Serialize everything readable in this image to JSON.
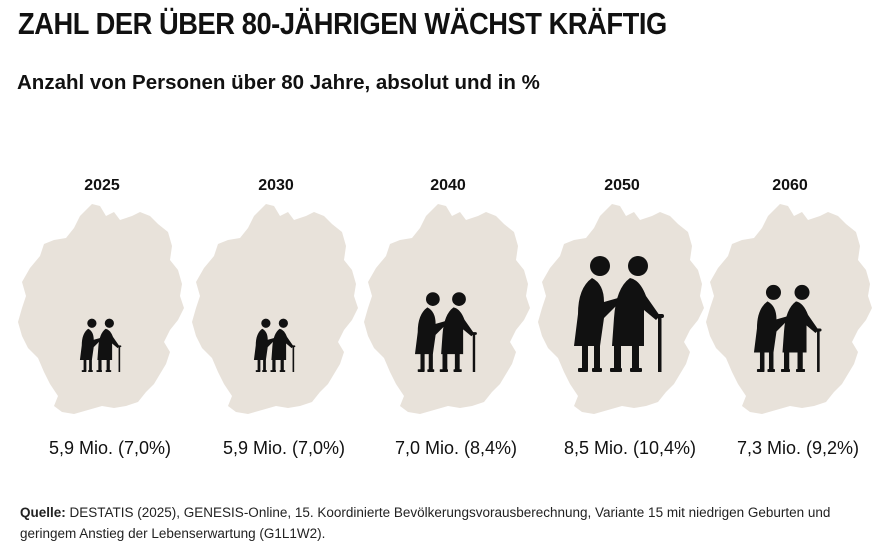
{
  "header": {
    "title": "ZAHL DER ÜBER 80-JÄHRIGEN WÄCHST KRÄFTIG",
    "subtitle": "Anzahl von Personen über 80 Jahre, absolut und in %"
  },
  "chart_data": {
    "type": "pictogram",
    "title": "ZAHL DER ÜBER 80-JÄHRIGEN WÄCHST KRÄFTIG",
    "subtitle": "Anzahl von Personen über 80 Jahre, absolut und in %",
    "categories": [
      "2025",
      "2030",
      "2040",
      "2050",
      "2060"
    ],
    "series": [
      {
        "values_mio": [
          5.9,
          5.9,
          7.0,
          8.5,
          7.3
        ],
        "percent": [
          7.0,
          7.0,
          8.4,
          10.4,
          9.2
        ]
      }
    ],
    "labels": [
      "5,9 Mio. (7,0%)",
      "5,9 Mio. (7,0%)",
      "7,0 Mio. (8,4%)",
      "8,5 Mio. (10,4%)",
      "7,3 Mio. (9,2%)"
    ],
    "icon": "elderly-couple-icon",
    "background_shape": "germany-map-icon",
    "colors": {
      "map": "#e8e2da",
      "icon": "#111111",
      "text": "#111111"
    }
  },
  "source": {
    "label": "Quelle:",
    "text": " DESTATIS (2025), GENESIS-Online, 15. Koordinierte Bevölkerungsvorausberechnung, Variante 15 mit niedrigen Geburten und geringem Anstieg der Lebenserwartung (G1L1W2)."
  }
}
